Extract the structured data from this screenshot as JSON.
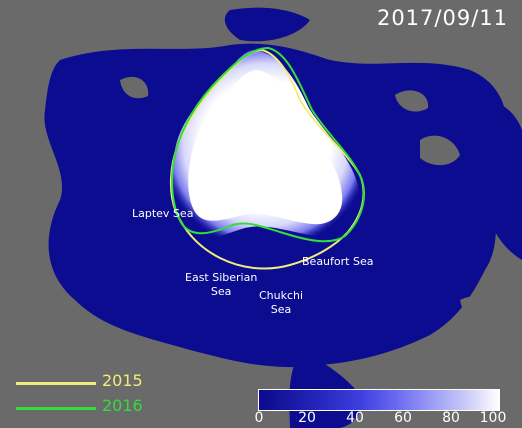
{
  "date": "2017/09/11",
  "sea_labels": [
    {
      "id": "laptev",
      "text": "Laptev Sea"
    },
    {
      "id": "east-siberian",
      "text": "East Siberian\nSea"
    },
    {
      "id": "chukchi",
      "text": "Chukchi\nSea"
    },
    {
      "id": "beaufort",
      "text": "Beaufort Sea"
    }
  ],
  "legend": [
    {
      "year": "2015",
      "color": "#f2ec7a"
    },
    {
      "year": "2016",
      "color": "#34dd3c"
    }
  ],
  "colorbar": {
    "ticks": [
      "0",
      "20",
      "40",
      "60",
      "80",
      "100"
    ],
    "colors": [
      "#0a0a8c",
      "#1a1aa6",
      "#2a2ac4",
      "#4040e0",
      "#6a6af0",
      "#9a9af4",
      "#c8c8fa",
      "#ffffff"
    ]
  },
  "colors": {
    "ocean": "#0c0c90",
    "land": "#6a6a6a",
    "ice": "#ffffff"
  }
}
